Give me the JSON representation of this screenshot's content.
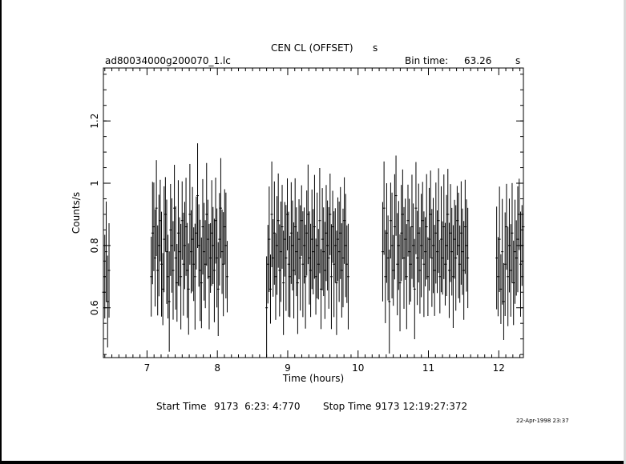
{
  "title": "CEN CL (OFFSET)",
  "title_suffix": "s",
  "file_label": "ad80034000g200070_1.lc",
  "bin_time_label": "Bin time:",
  "bin_time_value": "63.26",
  "bin_time_unit": "s",
  "start_time_label": "Start Time",
  "start_time_value": "9173  6:23: 4:770",
  "stop_time_label": "Stop Time",
  "stop_time_value": "9173 12:19:27:372",
  "date_stamp": "22-Apr-1998 23:37",
  "chart_data": {
    "type": "scatter",
    "xlabel": "Time (hours)",
    "ylabel": "Counts/s",
    "xlim": [
      6.38,
      12.35
    ],
    "ylim": [
      0.44,
      1.37
    ],
    "x_ticks": [
      7,
      8,
      9,
      10,
      11,
      12
    ],
    "y_ticks": [
      0.6,
      0.8,
      1,
      1.2
    ],
    "error_bars": true,
    "segments": [
      {
        "start": 6.38,
        "end": 6.46,
        "values": [
          0.65,
          0.7,
          0.78,
          0.62,
          0.72
        ]
      },
      {
        "start": 7.06,
        "end": 8.14,
        "values": [
          0.7,
          0.84,
          0.86,
          0.76,
          0.92,
          0.72,
          0.8,
          0.88,
          0.74,
          0.66,
          0.82,
          0.9,
          0.78,
          0.7,
          0.62,
          0.85,
          0.8,
          0.72,
          0.92,
          0.76,
          0.68,
          0.84,
          0.78,
          0.7,
          0.88,
          0.74,
          0.8,
          0.86,
          0.72,
          0.66,
          0.9,
          0.78,
          0.82,
          0.74,
          0.7,
          0.84,
          0.96,
          0.8,
          0.72,
          0.68,
          0.86,
          0.78,
          0.74,
          0.9,
          0.82,
          0.7,
          0.76,
          0.84,
          0.8,
          0.72,
          0.88,
          0.76,
          0.66,
          0.82,
          0.92,
          0.78,
          0.74,
          0.86,
          0.8,
          0.7
        ]
      },
      {
        "start": 8.7,
        "end": 9.86,
        "values": [
          0.6,
          0.74,
          0.82,
          0.66,
          0.9,
          0.76,
          0.84,
          0.7,
          0.8,
          0.88,
          0.72,
          0.78,
          0.86,
          0.68,
          0.82,
          0.76,
          0.9,
          0.74,
          0.7,
          0.84,
          0.8,
          0.72,
          0.86,
          0.78,
          0.68,
          0.82,
          0.76,
          0.88,
          0.74,
          0.8,
          0.7,
          0.84,
          0.9,
          0.76,
          0.72,
          0.82,
          0.78,
          0.86,
          0.7,
          0.8,
          0.74,
          0.88,
          0.66,
          0.82,
          0.78,
          0.72,
          0.84,
          0.8,
          0.76,
          0.9,
          0.7,
          0.86,
          0.74,
          0.8,
          0.68,
          0.82,
          0.78,
          0.84,
          0.72,
          0.76,
          0.88,
          0.8,
          0.74,
          0.7
        ]
      },
      {
        "start": 10.35,
        "end": 11.56,
        "values": [
          0.78,
          0.92,
          0.7,
          0.84,
          0.76,
          0.62,
          0.88,
          0.8,
          0.72,
          0.86,
          0.96,
          0.74,
          0.8,
          0.68,
          0.84,
          0.9,
          0.76,
          0.82,
          0.7,
          0.88,
          0.78,
          0.74,
          0.86,
          0.8,
          0.66,
          0.92,
          0.76,
          0.84,
          0.72,
          0.8,
          0.88,
          0.74,
          0.78,
          0.86,
          0.7,
          0.82,
          0.9,
          0.76,
          0.8,
          0.72,
          0.84,
          0.78,
          0.88,
          0.7,
          0.82,
          0.76,
          0.86,
          0.74,
          0.8,
          0.9,
          0.72,
          0.84,
          0.78,
          0.7,
          0.82,
          0.76,
          0.88,
          0.8,
          0.74,
          0.84,
          0.78,
          0.72,
          0.86,
          0.8,
          0.76
        ]
      },
      {
        "start": 11.97,
        "end": 12.35,
        "values": [
          0.76,
          0.7,
          0.82,
          0.66,
          0.78,
          0.62,
          0.74,
          0.86,
          0.7,
          0.8,
          0.72,
          0.84,
          0.68,
          0.78,
          0.76,
          0.82,
          0.9,
          0.74,
          0.8,
          0.86
        ]
      }
    ]
  }
}
